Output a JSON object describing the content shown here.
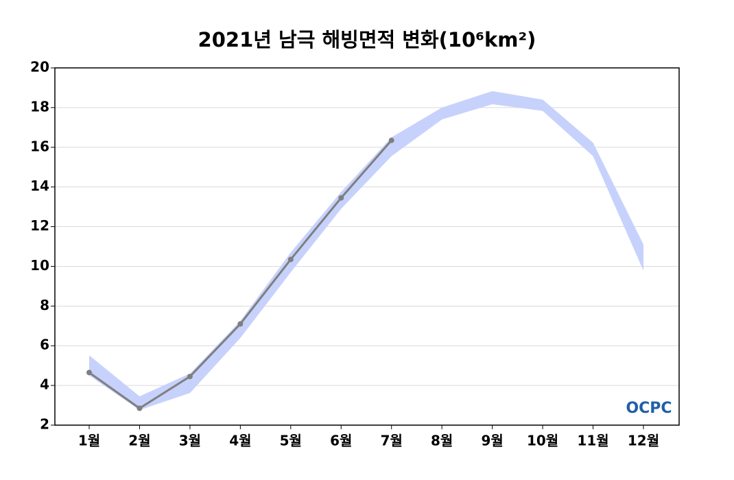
{
  "chart_data": {
    "type": "line",
    "title": "2021년 남극 해빙면적 변화(10⁶km²)",
    "categories": [
      "1월",
      "2월",
      "3월",
      "4월",
      "5월",
      "6월",
      "7월",
      "8월",
      "9월",
      "10월",
      "11월",
      "12월"
    ],
    "values": [
      4.65,
      2.85,
      4.45,
      7.1,
      10.35,
      13.45,
      16.35,
      null,
      null,
      null,
      null,
      null
    ],
    "color": "#7f7f7f",
    "band": {
      "lower": [
        4.5,
        2.76,
        3.62,
        6.39,
        9.7,
        12.9,
        15.55,
        17.4,
        18.17,
        17.83,
        15.55,
        9.78
      ],
      "upper": [
        5.52,
        3.45,
        4.6,
        7.25,
        10.7,
        13.75,
        16.5,
        18.0,
        18.83,
        18.4,
        16.23,
        11.1
      ],
      "color": "#c6d2fc"
    },
    "ylim": [
      2,
      20
    ],
    "yticks": [
      2,
      4,
      6,
      8,
      10,
      12,
      14,
      16,
      18,
      20
    ],
    "grid": true,
    "logo": "OCPC"
  }
}
